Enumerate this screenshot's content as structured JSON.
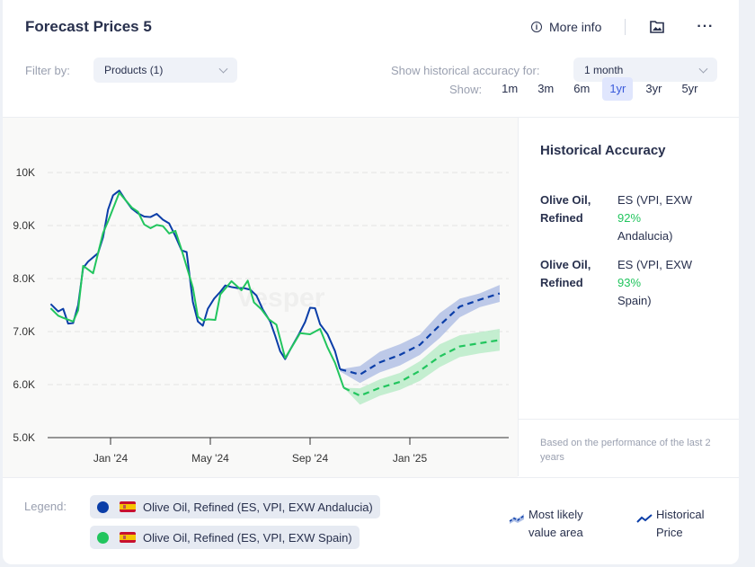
{
  "header": {
    "title": "Forecast Prices 5",
    "more_info_label": "More info",
    "icons": [
      "info-icon",
      "image-export-icon",
      "more-dots-icon"
    ]
  },
  "filters": {
    "filter_label": "Filter by:",
    "products_value": "Products (1)",
    "accuracy_label": "Show historical accuracy for:",
    "accuracy_value": "1 month",
    "show_label": "Show:",
    "ranges": [
      "1m",
      "3m",
      "6m",
      "1yr",
      "3yr",
      "5yr"
    ],
    "active_range": "1yr"
  },
  "side": {
    "title": "Historical Accuracy",
    "rows": [
      {
        "product": "Olive Oil, Refined",
        "source_line1": "ES (VPI, EXW",
        "source_line2": "Andalucia)",
        "accuracy": "92%"
      },
      {
        "product": "Olive Oil, Refined",
        "source_line1": "ES (VPI, EXW",
        "source_line2": "Spain)",
        "accuracy": "93%"
      }
    ],
    "footnote": "Based on the performance of the last 2 years"
  },
  "legend": {
    "label": "Legend:",
    "items": [
      {
        "name": "Olive Oil, Refined (ES, VPI, EXW Andalucia)",
        "color": "#0b3ea8",
        "flag": "spain-flag"
      },
      {
        "name": "Olive Oil, Refined (ES, VPI, EXW Spain)",
        "color": "#22c55e",
        "flag": "spain-flag"
      }
    ],
    "keys": [
      {
        "label_line1": "Most likely",
        "label_line2": "value area",
        "icon": "area-band-icon"
      },
      {
        "label_line1": "Historical",
        "label_line2": "Price",
        "icon": "line-trend-icon"
      }
    ]
  },
  "chart_data": {
    "type": "line",
    "title": "",
    "xlabel": "",
    "ylabel": "",
    "watermark": "Vesper",
    "x_unit": "months since Jan 2024",
    "x_ticks": [
      {
        "x": 0,
        "label": "Jan '24"
      },
      {
        "x": 4,
        "label": "May '24"
      },
      {
        "x": 8,
        "label": "Sep '24"
      },
      {
        "x": 12,
        "label": "Jan '25"
      }
    ],
    "xlim": [
      -2.5,
      15.8
    ],
    "y_ticks": [
      {
        "y": 5000,
        "label": "5.0K"
      },
      {
        "y": 6000,
        "label": "6.0K"
      },
      {
        "y": 7000,
        "label": "7.0K"
      },
      {
        "y": 8000,
        "label": "8.0K"
      },
      {
        "y": 9000,
        "label": "9.0K"
      },
      {
        "y": 10000,
        "label": "10K"
      }
    ],
    "ylim": [
      5000,
      10000
    ],
    "grid": true,
    "series": [
      {
        "name": "Olive Oil, Refined (ES, VPI, EXW Andalucia)",
        "color": "#0b3ea8",
        "historical": [
          [
            -2.4,
            7520
          ],
          [
            -2.1,
            7380
          ],
          [
            -1.9,
            7430
          ],
          [
            -1.7,
            7150
          ],
          [
            -1.5,
            7160
          ],
          [
            -1.3,
            7500
          ],
          [
            -1.1,
            8200
          ],
          [
            -0.9,
            8320
          ],
          [
            -0.5,
            8480
          ],
          [
            -0.3,
            8780
          ],
          [
            -0.1,
            9300
          ],
          [
            0.1,
            9570
          ],
          [
            0.35,
            9660
          ],
          [
            0.6,
            9480
          ],
          [
            0.85,
            9320
          ],
          [
            1.1,
            9230
          ],
          [
            1.35,
            9170
          ],
          [
            1.6,
            9160
          ],
          [
            1.85,
            9220
          ],
          [
            2.1,
            9110
          ],
          [
            2.35,
            9040
          ],
          [
            2.6,
            8800
          ],
          [
            2.85,
            8530
          ],
          [
            3.05,
            8500
          ],
          [
            3.3,
            7560
          ],
          [
            3.5,
            7190
          ],
          [
            3.7,
            7110
          ],
          [
            3.9,
            7430
          ],
          [
            4.15,
            7620
          ],
          [
            4.4,
            7750
          ],
          [
            4.6,
            7870
          ],
          [
            4.85,
            7840
          ],
          [
            5.1,
            7820
          ],
          [
            5.35,
            7820
          ],
          [
            5.6,
            7790
          ],
          [
            5.85,
            7680
          ],
          [
            6.1,
            7420
          ],
          [
            6.4,
            7190
          ],
          [
            6.6,
            6920
          ],
          [
            6.8,
            6630
          ],
          [
            7.0,
            6480
          ],
          [
            7.25,
            6700
          ],
          [
            7.55,
            6950
          ],
          [
            7.8,
            7180
          ],
          [
            8.0,
            7450
          ],
          [
            8.2,
            7440
          ],
          [
            8.4,
            7140
          ],
          [
            8.7,
            6950
          ],
          [
            9.0,
            6630
          ],
          [
            9.2,
            6290
          ]
        ],
        "forecast": [
          [
            9.2,
            6290
          ],
          [
            10.0,
            6190
          ],
          [
            10.8,
            6420
          ],
          [
            11.6,
            6560
          ],
          [
            12.4,
            6750
          ],
          [
            13.2,
            7120
          ],
          [
            14.0,
            7470
          ],
          [
            14.8,
            7600
          ],
          [
            15.6,
            7720
          ]
        ],
        "band_upper": [
          [
            9.2,
            6290
          ],
          [
            10.0,
            6350
          ],
          [
            10.8,
            6620
          ],
          [
            11.6,
            6760
          ],
          [
            12.4,
            6940
          ],
          [
            13.2,
            7350
          ],
          [
            14.0,
            7620
          ],
          [
            14.8,
            7720
          ],
          [
            15.6,
            7880
          ]
        ],
        "band_lower": [
          [
            9.2,
            6250
          ],
          [
            10.0,
            6030
          ],
          [
            10.8,
            6230
          ],
          [
            11.6,
            6360
          ],
          [
            12.4,
            6560
          ],
          [
            13.2,
            6880
          ],
          [
            14.0,
            7270
          ],
          [
            14.8,
            7460
          ],
          [
            15.6,
            7560
          ]
        ]
      },
      {
        "name": "Olive Oil, Refined (ES, VPI, EXW Spain)",
        "color": "#22c55e",
        "historical": [
          [
            -2.4,
            7440
          ],
          [
            -2.1,
            7300
          ],
          [
            -1.9,
            7260
          ],
          [
            -1.5,
            7190
          ],
          [
            -1.3,
            7400
          ],
          [
            -1.1,
            8240
          ],
          [
            -0.7,
            8100
          ],
          [
            -0.3,
            8860
          ],
          [
            -0.1,
            9080
          ],
          [
            0.35,
            9620
          ],
          [
            0.85,
            9340
          ],
          [
            1.1,
            9260
          ],
          [
            1.35,
            9020
          ],
          [
            1.6,
            8950
          ],
          [
            1.85,
            9010
          ],
          [
            2.1,
            8990
          ],
          [
            2.35,
            8850
          ],
          [
            2.6,
            8900
          ],
          [
            2.85,
            8540
          ],
          [
            3.1,
            8150
          ],
          [
            3.3,
            7830
          ],
          [
            3.5,
            7280
          ],
          [
            3.7,
            7210
          ],
          [
            3.9,
            7230
          ],
          [
            4.2,
            7220
          ],
          [
            4.4,
            7700
          ],
          [
            4.85,
            7950
          ],
          [
            5.25,
            7780
          ],
          [
            5.5,
            7960
          ],
          [
            5.75,
            7550
          ],
          [
            6.05,
            7420
          ],
          [
            6.35,
            7230
          ],
          [
            6.65,
            7130
          ],
          [
            7.0,
            6500
          ],
          [
            7.6,
            6970
          ],
          [
            8.0,
            6950
          ],
          [
            8.4,
            7050
          ],
          [
            8.7,
            6700
          ],
          [
            9.0,
            6410
          ],
          [
            9.35,
            5940
          ]
        ],
        "forecast": [
          [
            9.35,
            5940
          ],
          [
            10.0,
            5790
          ],
          [
            10.8,
            5940
          ],
          [
            11.6,
            6050
          ],
          [
            12.4,
            6260
          ],
          [
            13.2,
            6530
          ],
          [
            14.0,
            6720
          ],
          [
            14.8,
            6780
          ],
          [
            15.6,
            6840
          ]
        ],
        "band_upper": [
          [
            9.35,
            5940
          ],
          [
            10.0,
            5930
          ],
          [
            10.8,
            6100
          ],
          [
            11.6,
            6220
          ],
          [
            12.4,
            6440
          ],
          [
            13.2,
            6760
          ],
          [
            14.0,
            6930
          ],
          [
            14.8,
            6990
          ],
          [
            15.6,
            7050
          ]
        ],
        "band_lower": [
          [
            9.35,
            5940
          ],
          [
            10.0,
            5620
          ],
          [
            10.8,
            5790
          ],
          [
            11.6,
            5900
          ],
          [
            12.4,
            6070
          ],
          [
            13.2,
            6330
          ],
          [
            14.0,
            6520
          ],
          [
            14.8,
            6590
          ],
          [
            15.6,
            6640
          ]
        ]
      }
    ],
    "legend_position": "bottom"
  }
}
